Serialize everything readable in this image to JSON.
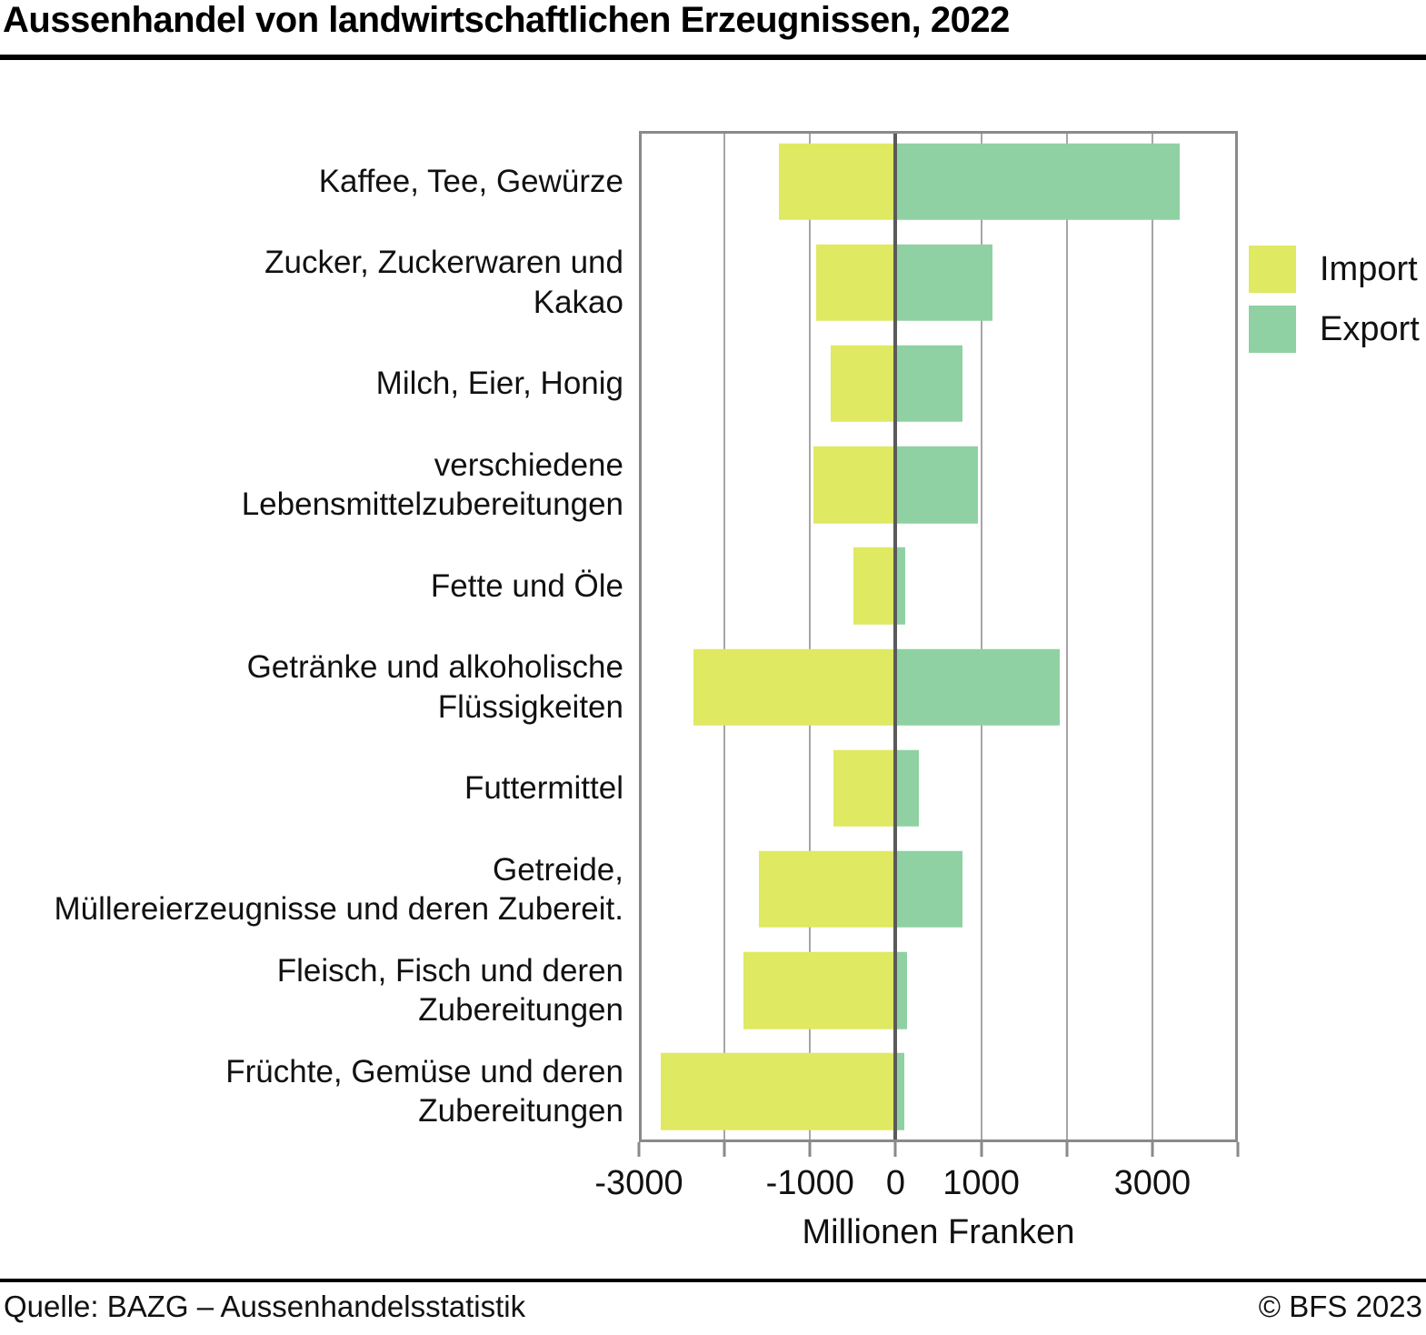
{
  "header": {
    "title": "Aussenhandel von landwirtschaftlichen Erzeugnissen, 2022"
  },
  "colors": {
    "import": "#dfe962",
    "export": "#8fd1a3",
    "grid": "#a6a6a6",
    "zero_line": "#5a5a5a",
    "frame": "#8a8a8a"
  },
  "chart_data": {
    "type": "bar",
    "orientation": "horizontal-diverging",
    "title": "Aussenhandel von landwirtschaftlichen Erzeugnissen, 2022",
    "xlabel": "Millionen Franken",
    "xlim": [
      -3000,
      4000
    ],
    "grid_step": 1000,
    "grid": true,
    "legend_position": "right-top",
    "x_ticks": [
      {
        "value": -3000,
        "label": "-3000"
      },
      {
        "value": -1000,
        "label": "-1000"
      },
      {
        "value": 0,
        "label": "0"
      },
      {
        "value": 1000,
        "label": "1000"
      },
      {
        "value": 3000,
        "label": "3000"
      }
    ],
    "categories": [
      "Kaffee, Tee, Gewürze",
      "Zucker, Zuckerwaren und Kakao",
      "Milch, Eier, Honig",
      "verschiedene Lebensmittelzubereitungen",
      "Fette und Öle",
      "Getränke und alkoholische Flüssigkeiten",
      "Futtermittel",
      "Getreide, Müllereierzeugnisse und deren Zubereit.",
      "Fleisch, Fisch und deren Zubereitungen",
      "Früchte, Gemüse und deren Zubereitungen"
    ],
    "category_lines": [
      [
        "Kaffee, Tee, Gewürze"
      ],
      [
        "Zucker, Zuckerwaren und",
        "Kakao"
      ],
      [
        "Milch, Eier, Honig"
      ],
      [
        "verschiedene",
        "Lebensmittelzubereitungen"
      ],
      [
        "Fette und Öle"
      ],
      [
        "Getränke und alkoholische",
        "Flüssigkeiten"
      ],
      [
        "Futtermittel"
      ],
      [
        "Getreide,",
        "Müllereierzeugnisse und deren Zubereit."
      ],
      [
        "Fleisch, Fisch und deren",
        "Zubereitungen"
      ],
      [
        "Früchte, Gemüse und deren",
        "Zubereitungen"
      ]
    ],
    "series": [
      {
        "name": "Import",
        "values": [
          -1360,
          -930,
          -760,
          -960,
          -490,
          -2360,
          -730,
          -1600,
          -1780,
          -2750
        ]
      },
      {
        "name": "Export",
        "values": [
          3320,
          1130,
          780,
          960,
          110,
          1920,
          270,
          780,
          130,
          100
        ]
      }
    ]
  },
  "footer": {
    "source": "Quelle: BAZG – Aussenhandelsstatistik",
    "copyright": "© BFS 2023"
  }
}
